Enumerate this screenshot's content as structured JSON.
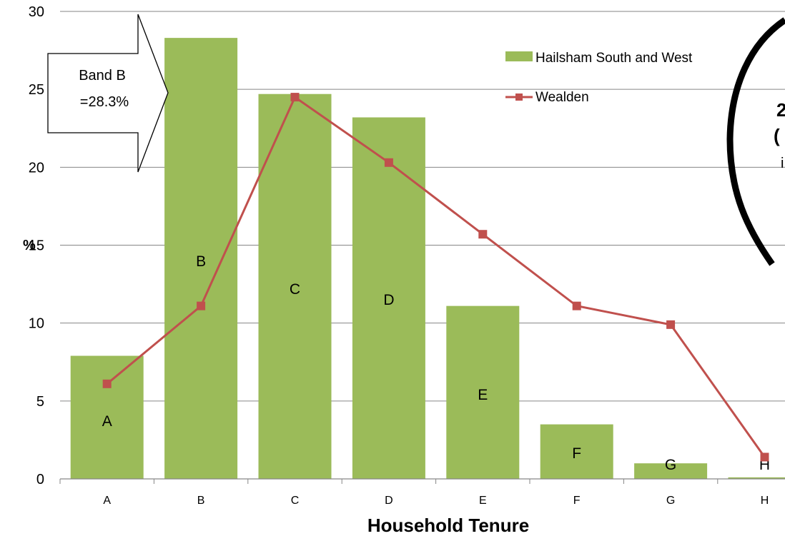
{
  "chart_data": {
    "type": "bar",
    "title": "",
    "xlabel": "Household Tenure",
    "ylabel": "%",
    "ylim": [
      0,
      30
    ],
    "yticks": [
      0,
      5,
      10,
      15,
      20,
      25,
      30
    ],
    "grid": "horizontal",
    "legend_position": "top-right",
    "categories": [
      "A",
      "B",
      "C",
      "D",
      "E",
      "F",
      "G",
      "H"
    ],
    "series": [
      {
        "name": "Hailsham South and West",
        "type": "bar",
        "color": "#9BBB59",
        "values": [
          7.9,
          28.3,
          24.7,
          23.2,
          11.1,
          3.5,
          1.0,
          0.1
        ],
        "bar_labels": [
          "A",
          "B",
          "C",
          "D",
          "E",
          "F",
          "G",
          "H"
        ]
      },
      {
        "name": "Wealden",
        "type": "line",
        "marker": "square",
        "color": "#C0504D",
        "values": [
          6.1,
          11.1,
          24.5,
          20.3,
          15.7,
          11.1,
          9.9,
          1.4
        ]
      }
    ],
    "annotations": {
      "callout": {
        "line1": "Band B",
        "line2": "=28.3%"
      },
      "oval": {
        "line1": "2",
        "line2": "(",
        "line3": "i"
      }
    }
  }
}
